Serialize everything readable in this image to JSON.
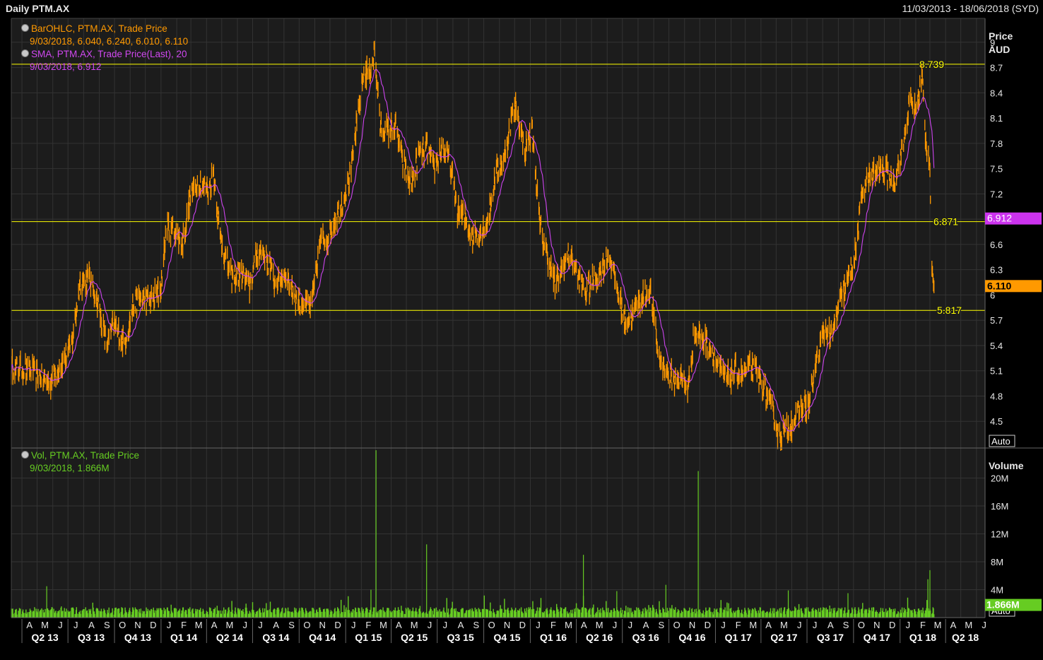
{
  "header": {
    "title": "Daily PTM.AX",
    "date_range": "11/03/2013 - 18/06/2018 (SYD)"
  },
  "legend": {
    "ohlc_label": "BarOHLC, PTM.AX, Trade Price",
    "ohlc_values": "9/03/2018, 6.040, 6.240, 6.010, 6.110",
    "sma_label": "SMA, PTM.AX, Trade Price(Last),  20",
    "sma_values": "9/03/2018, 6.912",
    "vol_label": "Vol, PTM.AX, Trade Price",
    "vol_values": "9/03/2018, 1.866M"
  },
  "colors": {
    "background": "#000000",
    "plot_background": "#1c1c1c",
    "price_line": "#ff9900",
    "sma_line": "#cc44ee",
    "volume_bar": "#66cc22",
    "hline": "#ffff00",
    "grid": "#333333"
  },
  "chart_data": [
    {
      "type": "line",
      "panel": "price",
      "y_axis_title": [
        "Price",
        "AUD"
      ],
      "ylim": [
        4.2,
        9.25
      ],
      "y_ticks": [
        "9",
        "8.7",
        "8.4",
        "8.1",
        "7.8",
        "7.5",
        "7.2",
        "6.9",
        "6.6",
        "6.3",
        "6",
        "5.7",
        "5.4",
        "5.1",
        "4.8",
        "4.5"
      ],
      "auto_label": "Auto",
      "x_start_date": "2013-03-11",
      "x_end_date": "2018-06-18",
      "month_ticks": [
        "A",
        "M",
        "J",
        "J",
        "A",
        "S",
        "O",
        "N",
        "D",
        "J",
        "F",
        "M",
        "A",
        "M",
        "J",
        "J",
        "A",
        "S",
        "O",
        "N",
        "D",
        "J",
        "F",
        "M",
        "A",
        "M",
        "J",
        "J",
        "A",
        "S",
        "O",
        "N",
        "D",
        "J",
        "F",
        "M",
        "A",
        "M",
        "J",
        "J",
        "A",
        "S",
        "O",
        "N",
        "D",
        "J",
        "F",
        "M",
        "A",
        "M",
        "J",
        "J",
        "A",
        "S",
        "O",
        "N",
        "D",
        "J",
        "F",
        "M",
        "A",
        "M",
        "J"
      ],
      "quarter_ticks": [
        "Q2 13",
        "Q3 13",
        "Q4 13",
        "Q1 14",
        "Q2 14",
        "Q3 14",
        "Q4 14",
        "Q1 15",
        "Q2 15",
        "Q3 15",
        "Q4 15",
        "Q1 16",
        "Q2 16",
        "Q3 16",
        "Q4 16",
        "Q1 17",
        "Q2 17",
        "Q3 17",
        "Q4 17",
        "Q1 18",
        "Q2 18"
      ],
      "horizontal_lines": [
        {
          "value": 8.739,
          "label": "8.739"
        },
        {
          "value": 6.871,
          "label": "6.871"
        },
        {
          "value": 5.817,
          "label": "5.817"
        }
      ],
      "current_tags": [
        {
          "series": "SMA",
          "value": 6.912,
          "label": "6.912"
        },
        {
          "series": "Price",
          "value": 6.11,
          "label": "6.110"
        }
      ],
      "series": [
        {
          "name": "BarOHLC, PTM.AX, Trade Price",
          "style": "ohlc-bars",
          "anchors": [
            [
              "2013-03-11",
              5.15
            ],
            [
              "2013-04-20",
              5.1
            ],
            [
              "2013-05-25",
              4.95
            ],
            [
              "2013-06-25",
              5.25
            ],
            [
              "2013-07-08",
              5.4
            ],
            [
              "2013-07-25",
              6.15
            ],
            [
              "2013-08-12",
              6.2
            ],
            [
              "2013-08-28",
              5.95
            ],
            [
              "2013-09-15",
              5.4
            ],
            [
              "2013-09-30",
              5.65
            ],
            [
              "2013-10-20",
              5.4
            ],
            [
              "2013-11-08",
              5.9
            ],
            [
              "2013-11-25",
              5.95
            ],
            [
              "2013-12-15",
              5.95
            ],
            [
              "2013-12-31",
              6.05
            ],
            [
              "2014-01-12",
              6.8
            ],
            [
              "2014-01-30",
              6.75
            ],
            [
              "2014-02-12",
              6.6
            ],
            [
              "2014-03-01",
              7.2
            ],
            [
              "2014-03-15",
              7.35
            ],
            [
              "2014-04-05",
              7.25
            ],
            [
              "2014-04-15",
              7.45
            ],
            [
              "2014-04-28",
              6.7
            ],
            [
              "2014-05-20",
              6.2
            ],
            [
              "2014-06-10",
              6.25
            ],
            [
              "2014-06-25",
              6.1
            ],
            [
              "2014-07-12",
              6.55
            ],
            [
              "2014-07-25",
              6.5
            ],
            [
              "2014-08-15",
              6.15
            ],
            [
              "2014-09-05",
              6.25
            ],
            [
              "2014-09-25",
              5.95
            ],
            [
              "2014-10-12",
              5.9
            ],
            [
              "2014-10-25",
              5.85
            ],
            [
              "2014-11-12",
              6.65
            ],
            [
              "2014-11-30",
              6.7
            ],
            [
              "2014-12-12",
              6.9
            ],
            [
              "2014-12-25",
              7.1
            ],
            [
              "2015-01-10",
              7.4
            ],
            [
              "2015-01-25",
              8.1
            ],
            [
              "2015-02-05",
              8.6
            ],
            [
              "2015-02-17",
              8.65
            ],
            [
              "2015-02-27",
              8.9
            ],
            [
              "2015-03-10",
              8.0
            ],
            [
              "2015-03-25",
              7.95
            ],
            [
              "2015-04-10",
              8.0
            ],
            [
              "2015-04-25",
              7.55
            ],
            [
              "2015-05-10",
              7.3
            ],
            [
              "2015-05-25",
              7.65
            ],
            [
              "2015-06-10",
              7.75
            ],
            [
              "2015-06-25",
              7.5
            ],
            [
              "2015-07-10",
              7.75
            ],
            [
              "2015-07-25",
              7.6
            ],
            [
              "2015-08-10",
              7.0
            ],
            [
              "2015-08-25",
              6.9
            ],
            [
              "2015-09-10",
              6.7
            ],
            [
              "2015-09-25",
              6.75
            ],
            [
              "2015-10-10",
              6.9
            ],
            [
              "2015-10-25",
              7.45
            ],
            [
              "2015-11-10",
              7.6
            ],
            [
              "2015-11-25",
              8.1
            ],
            [
              "2015-12-05",
              8.25
            ],
            [
              "2015-12-20",
              7.7
            ],
            [
              "2016-01-05",
              7.95
            ],
            [
              "2016-01-20",
              6.8
            ],
            [
              "2016-02-05",
              6.45
            ],
            [
              "2016-02-20",
              6.1
            ],
            [
              "2016-03-05",
              6.35
            ],
            [
              "2016-03-20",
              6.5
            ],
            [
              "2016-04-05",
              6.2
            ],
            [
              "2016-04-20",
              6.05
            ],
            [
              "2016-05-05",
              6.15
            ],
            [
              "2016-05-20",
              6.3
            ],
            [
              "2016-06-05",
              6.5
            ],
            [
              "2016-06-20",
              6.1
            ],
            [
              "2016-07-05",
              5.7
            ],
            [
              "2016-07-20",
              5.75
            ],
            [
              "2016-08-05",
              5.95
            ],
            [
              "2016-08-25",
              6.05
            ],
            [
              "2016-09-10",
              5.3
            ],
            [
              "2016-09-25",
              5.1
            ],
            [
              "2016-10-10",
              5.0
            ],
            [
              "2016-10-25",
              5.0
            ],
            [
              "2016-11-08",
              4.9
            ],
            [
              "2016-11-20",
              5.55
            ],
            [
              "2016-12-05",
              5.5
            ],
            [
              "2016-12-20",
              5.4
            ],
            [
              "2017-01-10",
              5.1
            ],
            [
              "2017-01-25",
              5.0
            ],
            [
              "2017-02-10",
              5.1
            ],
            [
              "2017-02-25",
              5.05
            ],
            [
              "2017-03-10",
              5.15
            ],
            [
              "2017-03-25",
              5.05
            ],
            [
              "2017-04-10",
              4.85
            ],
            [
              "2017-04-25",
              4.6
            ],
            [
              "2017-05-05",
              4.35
            ],
            [
              "2017-05-20",
              4.4
            ],
            [
              "2017-06-05",
              4.5
            ],
            [
              "2017-06-20",
              4.65
            ],
            [
              "2017-07-05",
              4.7
            ],
            [
              "2017-07-20",
              5.2
            ],
            [
              "2017-08-05",
              5.6
            ],
            [
              "2017-08-20",
              5.5
            ],
            [
              "2017-09-05",
              5.95
            ],
            [
              "2017-09-20",
              6.15
            ],
            [
              "2017-10-05",
              6.5
            ],
            [
              "2017-10-20",
              7.3
            ],
            [
              "2017-11-05",
              7.4
            ],
            [
              "2017-11-20",
              7.5
            ],
            [
              "2017-12-05",
              7.45
            ],
            [
              "2017-12-20",
              7.35
            ],
            [
              "2018-01-05",
              7.7
            ],
            [
              "2018-01-20",
              8.3
            ],
            [
              "2018-02-02",
              8.2
            ],
            [
              "2018-02-14",
              8.6
            ],
            [
              "2018-02-20",
              7.8
            ],
            [
              "2018-03-01",
              7.6
            ],
            [
              "2018-03-03",
              6.7
            ],
            [
              "2018-03-06",
              6.25
            ],
            [
              "2018-03-09",
              6.11
            ]
          ]
        },
        {
          "name": "SMA, PTM.AX, Trade Price(Last),  20",
          "style": "line",
          "period": 20
        }
      ]
    },
    {
      "type": "bar",
      "panel": "volume",
      "y_axis_title": "Volume",
      "ylim": [
        0,
        23500000
      ],
      "y_ticks": [
        "20M",
        "16M",
        "12M",
        "8M",
        "4M"
      ],
      "auto_label": "Auto",
      "current_tag": {
        "value": 1866000,
        "label": "1.866M"
      },
      "series": [
        {
          "name": "Vol, PTM.AX, Trade Price",
          "base_level": 1200000,
          "spikes": [
            [
              "2015-03-02",
              24000000
            ],
            [
              "2015-06-10",
              10500000
            ],
            [
              "2016-04-15",
              9000000
            ],
            [
              "2016-11-28",
              21000000
            ],
            [
              "2018-03-01",
              6800000
            ],
            [
              "2018-02-25",
              5500000
            ],
            [
              "2013-05-20",
              4500000
            ],
            [
              "2015-02-20",
              4000000
            ],
            [
              "2016-06-20",
              3800000
            ],
            [
              "2017-05-25",
              3900000
            ],
            [
              "2016-09-25",
              4700000
            ],
            [
              "2017-09-20",
              3500000
            ]
          ]
        }
      ]
    }
  ]
}
